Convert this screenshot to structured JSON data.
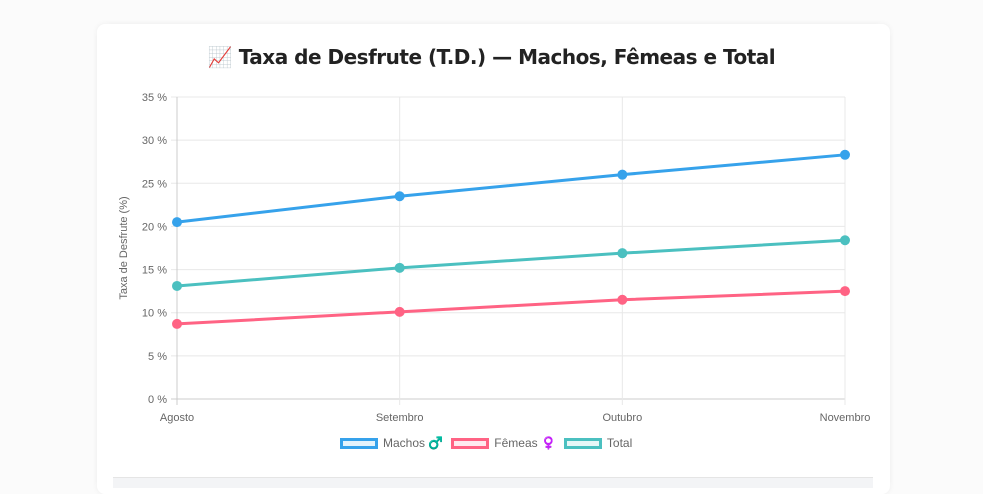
{
  "title": "📈 Taxa de Desfrute (T.D.) — Machos, Fêmeas e Total",
  "chart_data": {
    "type": "line",
    "title": "Taxa de Desfrute (T.D.) — Machos, Fêmeas e Total",
    "xlabel": "",
    "ylabel": "Taxa de Desfrute (%)",
    "categories": [
      "Agosto",
      "Setembro",
      "Outubro",
      "Novembro"
    ],
    "ylim": [
      0,
      35
    ],
    "yticks": [
      "0 %",
      "5 %",
      "10 %",
      "15 %",
      "20 %",
      "25 %",
      "30 %",
      "35 %"
    ],
    "grid": true,
    "legend": "bottom",
    "series": [
      {
        "name": "Machos ♂️",
        "color": "#36a2eb",
        "values": [
          20.5,
          23.5,
          26.0,
          28.3
        ]
      },
      {
        "name": "Fêmeas ♀️",
        "color": "#ff6384",
        "values": [
          8.7,
          10.1,
          11.5,
          12.5
        ]
      },
      {
        "name": "Total",
        "color": "#4bc0c0",
        "values": [
          13.1,
          15.2,
          16.9,
          18.4
        ]
      }
    ]
  }
}
